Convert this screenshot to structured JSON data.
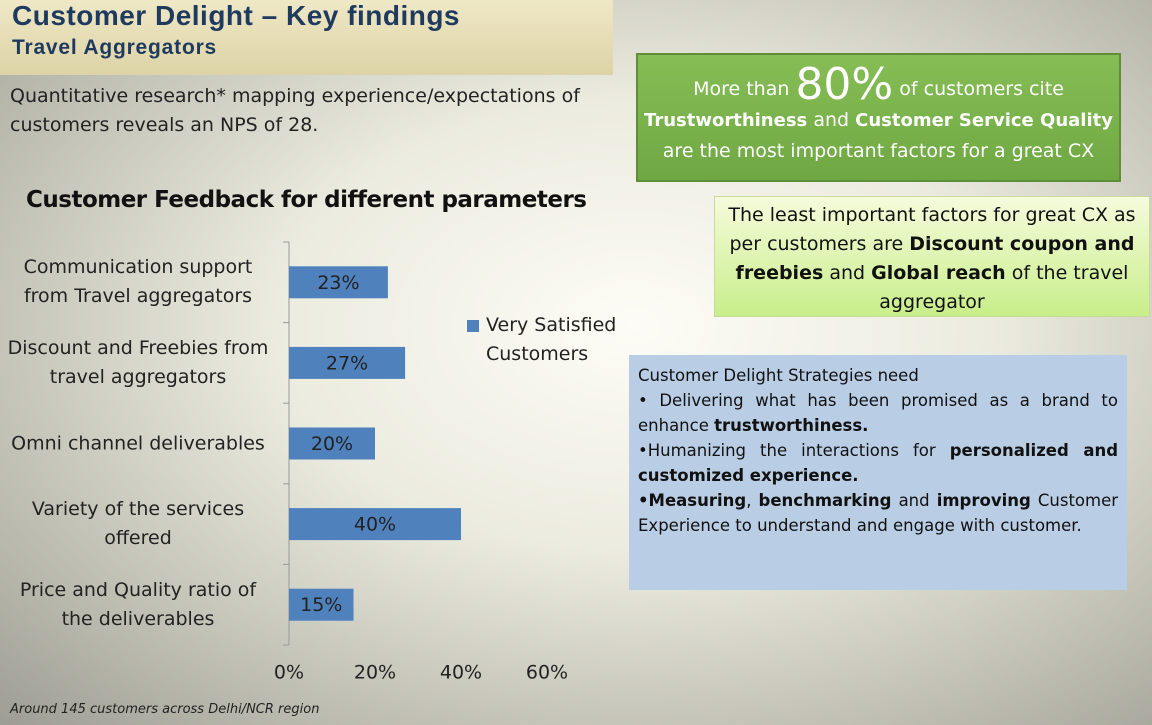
{
  "header": {
    "title": "Customer Delight – Key findings",
    "subtitle": "Travel Aggregators"
  },
  "intro": "Quantitative research* mapping experience/expectations of customers  reveals an NPS of 28.",
  "chart_data": {
    "type": "hbar",
    "title": "Customer Feedback for different parameters",
    "categories": [
      "Communication support from Travel aggregators",
      "Discount and Freebies from travel aggregators",
      "Omni channel deliverables",
      "Variety of the services offered",
      "Price and Quality ratio of the deliverables"
    ],
    "series": [
      {
        "name": "Very Satisfied Customers",
        "color": "#4f81bd",
        "values": [
          23,
          27,
          20,
          40,
          15
        ],
        "value_labels": [
          "23%",
          "27%",
          "20%",
          "40%",
          "15%"
        ]
      }
    ],
    "xlim": [
      0,
      60
    ],
    "xticks": [
      {
        "value": 0,
        "label": "0%"
      },
      {
        "value": 20,
        "label": "20%"
      },
      {
        "value": 40,
        "label": "40%"
      },
      {
        "value": 60,
        "label": "60%"
      }
    ],
    "legend": "right"
  },
  "footnote": "Around 145 customers across Delhi/NCR region",
  "highlight": {
    "segments": [
      "More than",
      "80%",
      "of customers cite",
      "Trustworthiness",
      "and",
      "Customer Service Quality",
      "are the most important factors for a great CX"
    ]
  },
  "least_important": {
    "segments": [
      "The least important factors for great CX as per customers are",
      "Discount coupon and freebies",
      "and",
      "Global reach",
      "of the travel aggregator"
    ]
  },
  "strategies": {
    "heading": "Customer Delight  Strategies need",
    "points": [
      [
        "• Delivering what has been promised as a brand to enhance",
        "trustworthiness."
      ],
      [
        "•Humanizing the interactions for",
        "personalized and customized experience."
      ],
      [
        "•Measuring",
        ",",
        "benchmarking",
        "and",
        "improving",
        "Customer Experience to understand and engage with customer."
      ]
    ]
  }
}
